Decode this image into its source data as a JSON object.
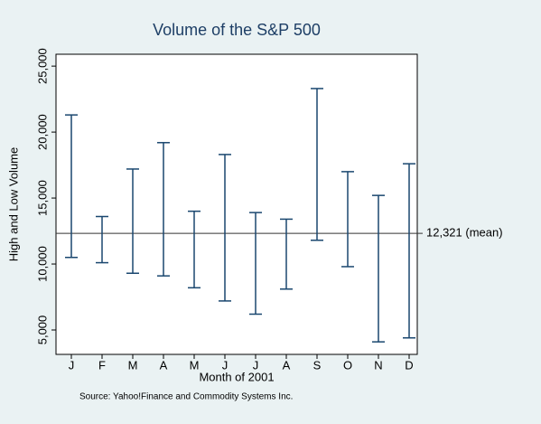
{
  "chart_data": {
    "type": "rcap",
    "title": "Volume of the S&P 500",
    "x_label": "Month of 2001",
    "y_label": "High and Low Volume",
    "note": "Source:  Yahoo!Finance and Commodity Systems Inc.",
    "categories": [
      "J",
      "F",
      "M",
      "A",
      "M",
      "J",
      "J",
      "A",
      "S",
      "O",
      "N",
      "D"
    ],
    "high": [
      21300,
      13600,
      17200,
      19200,
      14000,
      18300,
      13900,
      13400,
      23300,
      17000,
      15200,
      17600
    ],
    "low": [
      10500,
      10100,
      9300,
      9100,
      8200,
      7200,
      6200,
      8100,
      11800,
      9800,
      4100,
      4400
    ],
    "color": "#1a476f",
    "ylim": [
      3150,
      25900
    ],
    "yticks": [
      {
        "value": 5000,
        "label": "5,000"
      },
      {
        "value": 10000,
        "label": "10,000"
      },
      {
        "value": 15000,
        "label": "15,000"
      },
      {
        "value": 20000,
        "label": "20,000"
      },
      {
        "value": 25000,
        "label": "25,000"
      }
    ],
    "mean_line": {
      "value": 12321,
      "label": "12,321 (mean)"
    },
    "grid": false
  }
}
